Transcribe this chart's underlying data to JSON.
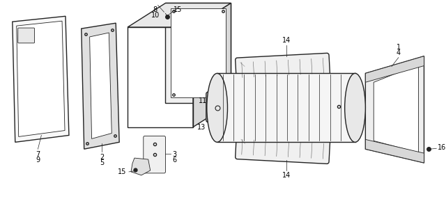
{
  "bg_color": "#ffffff",
  "line_color": "#222222",
  "label_color": "#000000",
  "fig_width": 6.4,
  "fig_height": 2.86,
  "dpi": 100
}
